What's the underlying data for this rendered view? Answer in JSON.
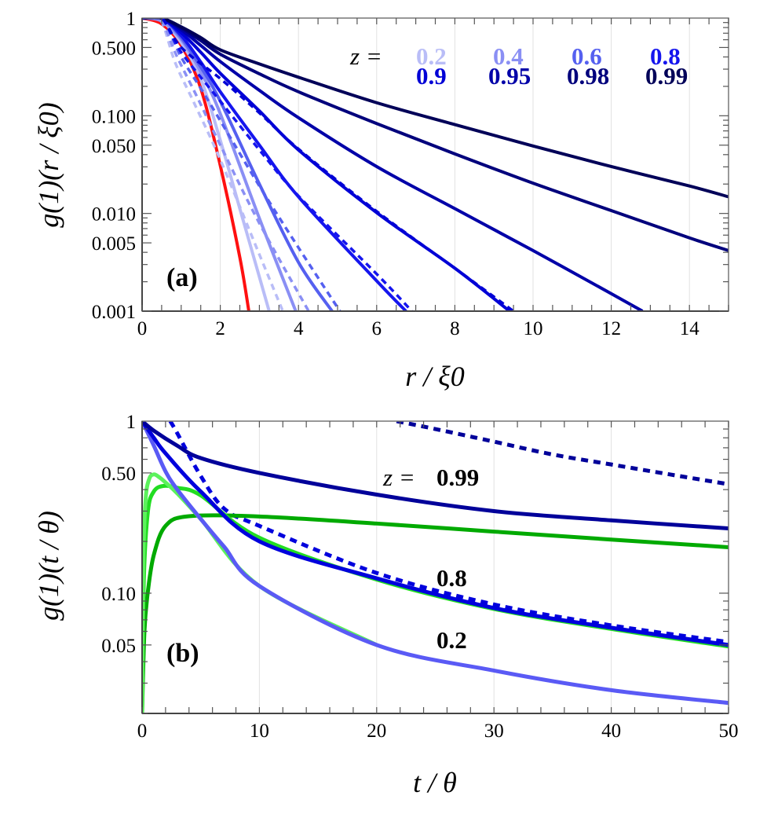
{
  "chart_data": [
    {
      "type": "line",
      "panel_label": "(a)",
      "xlabel": "r / ξ0",
      "ylabel": "g(1)(r / ξ0)",
      "xlim": [
        0,
        15
      ],
      "ylim": [
        0.001,
        1
      ],
      "yscale": "log",
      "grid": "vertical",
      "xticks": [
        "0",
        "2",
        "4",
        "6",
        "8",
        "10",
        "12",
        "14"
      ],
      "xtick_values": [
        0,
        2,
        4,
        6,
        8,
        10,
        12,
        14
      ],
      "yticks": [
        "1",
        "0.500",
        "0.100",
        "0.050",
        "0.010",
        "0.005",
        "0.001"
      ],
      "ytick_values": [
        1,
        0.5,
        0.1,
        0.05,
        0.01,
        0.005,
        0.001
      ],
      "legend_prefix": "z =",
      "legend_labels": [
        {
          "text": "0.2",
          "color": "#b9bdf7"
        },
        {
          "text": "0.4",
          "color": "#8a8ff4"
        },
        {
          "text": "0.6",
          "color": "#5560f0"
        },
        {
          "text": "0.8",
          "color": "#1515ee"
        },
        {
          "text": "0.9",
          "color": "#0000d6"
        },
        {
          "text": "0.95",
          "color": "#0000a8"
        },
        {
          "text": "0.98",
          "color": "#00007c"
        },
        {
          "text": "0.99",
          "color": "#000058"
        }
      ],
      "series": [
        {
          "z": "red",
          "color": "#ff1010",
          "style": "solid",
          "x": [
            0,
            0.5,
            1,
            1.5,
            2,
            2.5,
            2.73
          ],
          "y": [
            1,
            0.871,
            0.525,
            0.191,
            0.0309,
            0.00355,
            0.001
          ]
        },
        {
          "z": "0.2",
          "color": "#b9bdf7",
          "style": "solid",
          "x": [
            0,
            0.5,
            1,
            1.5,
            2,
            2.5,
            3,
            3.25
          ],
          "y": [
            1,
            0.933,
            0.562,
            0.24,
            0.0562,
            0.0112,
            0.00224,
            0.001
          ]
        },
        {
          "z": "0.4",
          "color": "#8a8ff4",
          "style": "solid",
          "x": [
            0,
            0.5,
            1,
            1.5,
            2,
            3,
            3.93
          ],
          "y": [
            1,
            0.933,
            0.603,
            0.282,
            0.105,
            0.00891,
            0.001
          ]
        },
        {
          "z": "0.6",
          "color": "#5560f0",
          "style": "solid",
          "x": [
            0,
            0.5,
            1,
            1.5,
            2,
            3,
            4,
            4.86
          ],
          "y": [
            1,
            1,
            0.631,
            0.316,
            0.141,
            0.02,
            0.00316,
            0.001
          ]
        },
        {
          "z": "0.8",
          "color": "#1515ee",
          "style": "solid",
          "x": [
            0,
            0.5,
            1,
            1.5,
            2,
            3,
            4,
            6,
            6.75
          ],
          "y": [
            1,
            1,
            0.661,
            0.355,
            0.176,
            0.0501,
            0.0148,
            0.00204,
            0.001
          ]
        },
        {
          "z": "0.9",
          "color": "#0000d6",
          "style": "solid",
          "x": [
            0,
            0.5,
            1,
            1.5,
            2,
            3,
            4,
            6,
            8,
            9.4
          ],
          "y": [
            1,
            1,
            0.708,
            0.447,
            0.272,
            0.112,
            0.0447,
            0.0102,
            0.00275,
            0.001
          ]
        },
        {
          "z": "0.95",
          "color": "#0000a8",
          "style": "solid",
          "x": [
            0,
            0.5,
            1,
            1.5,
            2,
            3,
            4,
            6,
            8,
            10,
            12,
            12.8
          ],
          "y": [
            1,
            1,
            0.759,
            0.525,
            0.359,
            0.182,
            0.0955,
            0.0302,
            0.0112,
            0.00417,
            0.00151,
            0.001
          ]
        },
        {
          "z": "0.98",
          "color": "#00007c",
          "style": "solid",
          "x": [
            0,
            0.5,
            1,
            1.5,
            2,
            3,
            4,
            6,
            8,
            10,
            12,
            14,
            15
          ],
          "y": [
            1,
            1,
            0.794,
            0.589,
            0.427,
            0.269,
            0.176,
            0.0832,
            0.0407,
            0.0204,
            0.0107,
            0.00562,
            0.00417
          ]
        },
        {
          "z": "0.99",
          "color": "#000058",
          "style": "solid",
          "x": [
            0,
            0.5,
            1,
            1.5,
            2,
            3,
            4,
            6,
            8,
            10,
            12,
            14,
            15
          ],
          "y": [
            1,
            1,
            0.813,
            0.631,
            0.473,
            0.339,
            0.248,
            0.136,
            0.0813,
            0.049,
            0.0302,
            0.0191,
            0.0148
          ]
        },
        {
          "z": "0.2",
          "color": "#b9bdf7",
          "style": "dashed",
          "x": [
            0,
            0.45,
            0.85,
            1.32,
            2,
            3,
            3.6
          ],
          "y": [
            1,
            1,
            0.347,
            0.138,
            0.0355,
            0.0038,
            0.001
          ]
        },
        {
          "z": "0.4",
          "color": "#8a8ff4",
          "style": "dashed",
          "x": [
            0,
            0.45,
            0.9,
            1.4,
            2,
            3,
            4.26
          ],
          "y": [
            1,
            1,
            0.398,
            0.158,
            0.0501,
            0.00794,
            0.001
          ]
        },
        {
          "z": "0.6",
          "color": "#5560f0",
          "style": "dashed",
          "x": [
            0,
            0.5,
            1,
            1.5,
            2,
            3,
            4,
            5.06
          ],
          "y": [
            1,
            1,
            0.398,
            0.191,
            0.0891,
            0.0191,
            0.00447,
            0.001
          ]
        },
        {
          "z": "0.8",
          "color": "#1515ee",
          "style": "dashed",
          "x": [
            0,
            0.5,
            1,
            2,
            3,
            4,
            6,
            6.9
          ],
          "y": [
            1,
            1,
            0.447,
            0.141,
            0.0447,
            0.0151,
            0.0024,
            0.001
          ]
        },
        {
          "z": "0.9",
          "color": "#0000d6",
          "style": "dashed",
          "x": [
            0,
            0.5,
            1,
            2,
            3,
            4,
            6,
            8,
            9.5
          ],
          "y": [
            1,
            1,
            0.501,
            0.24,
            0.107,
            0.0457,
            0.0105,
            0.00275,
            0.001
          ]
        }
      ]
    },
    {
      "type": "line",
      "panel_label": "(b)",
      "xlabel": "t / θ",
      "ylabel": "g(1)(t / θ)",
      "xlim": [
        0,
        50
      ],
      "ylim": [
        0.02,
        1
      ],
      "yscale": "log",
      "grid": "vertical",
      "xticks": [
        "0",
        "10",
        "20",
        "30",
        "40",
        "50"
      ],
      "xtick_values": [
        0,
        10,
        20,
        30,
        40,
        50
      ],
      "yticks": [
        "1",
        "0.50",
        "0.10",
        "0.05"
      ],
      "ytick_values": [
        1,
        0.5,
        0.1,
        0.05
      ],
      "annotations": [
        {
          "prefix": "z =",
          "text": "0.99",
          "color": "#00009a"
        },
        {
          "text": "0.8",
          "color": "#0000dd"
        },
        {
          "text": "0.2",
          "color": "#5a5af5"
        }
      ],
      "series": [
        {
          "z": "0.99",
          "color": "#00009a",
          "style": "dashed",
          "x": [
            21.7,
            25,
            30,
            35,
            40,
            45,
            50
          ],
          "y": [
            1,
            0.9,
            0.76,
            0.64,
            0.56,
            0.49,
            0.43
          ]
        },
        {
          "z": "0.8",
          "color": "#0000dd",
          "style": "dashed",
          "x": [
            2.4,
            3,
            5,
            7,
            10,
            20,
            30,
            40,
            50
          ],
          "y": [
            1,
            0.85,
            0.48,
            0.31,
            0.246,
            0.131,
            0.086,
            0.065,
            0.052
          ]
        },
        {
          "z": "green-dark",
          "color": "#00aa00",
          "style": "solid",
          "x": [
            0,
            0.2,
            0.5,
            1,
            2,
            4,
            10,
            20,
            30,
            40,
            50
          ],
          "y": [
            0.02,
            0.06,
            0.103,
            0.167,
            0.246,
            0.28,
            0.279,
            0.254,
            0.228,
            0.205,
            0.185
          ]
        },
        {
          "z": "green-medium",
          "color": "#22dd22",
          "style": "solid",
          "x": [
            0,
            0.15,
            0.5,
            1,
            1.8,
            3,
            5,
            10,
            20,
            30,
            40,
            50
          ],
          "y": [
            0.02,
            0.12,
            0.3,
            0.39,
            0.42,
            0.41,
            0.37,
            0.21,
            0.12,
            0.081,
            0.062,
            0.049
          ]
        },
        {
          "z": "green-light",
          "color": "#5cf25c",
          "style": "solid",
          "x": [
            0,
            0.1,
            0.3,
            0.6,
            1,
            1.5,
            2,
            3,
            5,
            10,
            20
          ],
          "y": [
            0.02,
            0.15,
            0.35,
            0.46,
            0.49,
            0.47,
            0.44,
            0.38,
            0.27,
            0.11,
            0.05
          ]
        },
        {
          "z": "0.2",
          "color": "#5a5af5",
          "style": "solid",
          "x": [
            0,
            1,
            2,
            3,
            5,
            7,
            10,
            20,
            30,
            40,
            50
          ],
          "y": [
            1,
            0.72,
            0.51,
            0.4,
            0.27,
            0.186,
            0.11,
            0.05,
            0.0355,
            0.0273,
            0.023
          ]
        },
        {
          "z": "0.8",
          "color": "#0000dd",
          "style": "solid",
          "x": [
            0,
            1,
            2,
            5,
            10,
            20,
            30,
            40,
            50
          ],
          "y": [
            1,
            0.8,
            0.65,
            0.39,
            0.2,
            0.122,
            0.082,
            0.063,
            0.05
          ]
        },
        {
          "z": "0.99",
          "color": "#00009a",
          "style": "solid",
          "x": [
            0,
            1,
            3,
            5,
            10,
            20,
            30,
            40,
            50
          ],
          "y": [
            1,
            0.88,
            0.72,
            0.61,
            0.5,
            0.374,
            0.3,
            0.265,
            0.238
          ]
        }
      ]
    }
  ]
}
